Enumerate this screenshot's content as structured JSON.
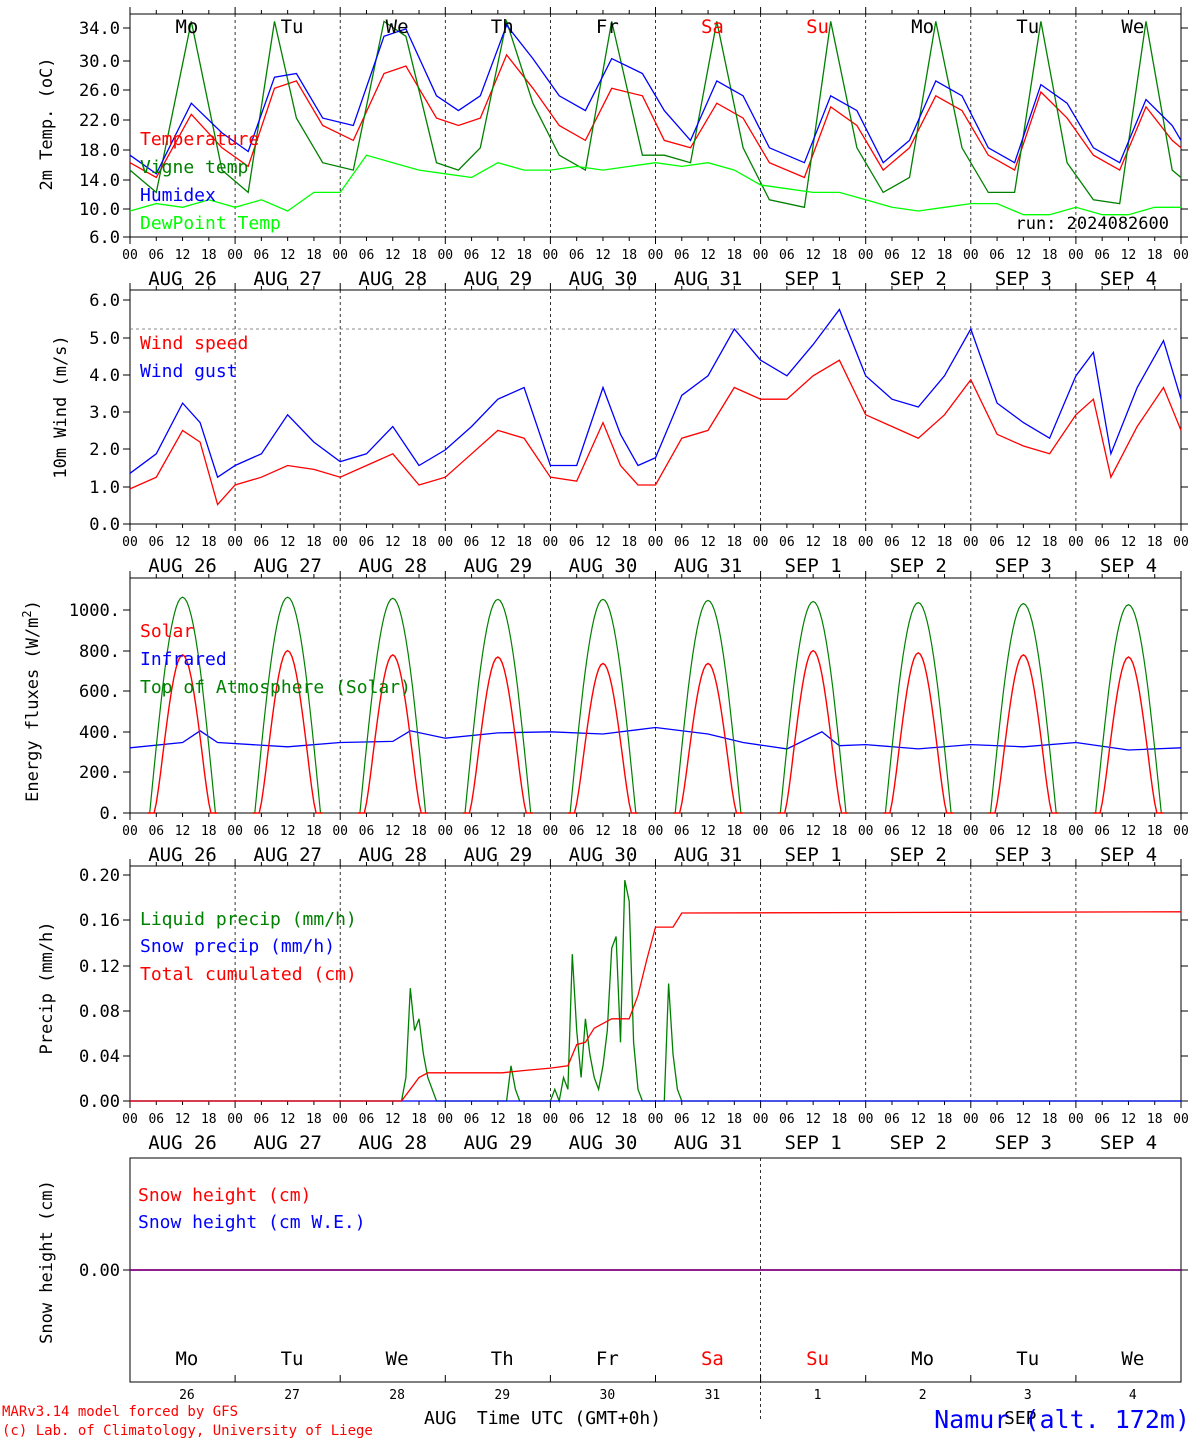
{
  "run_label": "run: 2024082600",
  "footer": {
    "credit_line1": "MARv3.14 model forced by GFS",
    "credit_line2": "(c) Lab. of Climatology, University of Liege",
    "xlabel": "Time UTC (GMT+0h)",
    "month_left": "AUG",
    "month_right": "SEP",
    "station": "Namur (alt. 172m)"
  },
  "time_axis": {
    "hour_ticks": [
      "00",
      "06",
      "12",
      "18"
    ],
    "date_labels": [
      "AUG 26",
      "AUG 27",
      "AUG 28",
      "AUG 29",
      "AUG 30",
      "AUG 31",
      "SEP  1",
      "SEP  2",
      "SEP  3",
      "SEP  4"
    ],
    "weekdays": [
      "Mo",
      "Tu",
      "We",
      "Th",
      "Fr",
      "Sa",
      "Su",
      "Mo",
      "Tu",
      "We"
    ],
    "weekday_colors": [
      "#000000",
      "#000000",
      "#000000",
      "#000000",
      "#000000",
      "#ff0000",
      "#ff0000",
      "#000000",
      "#000000",
      "#000000"
    ],
    "day_numbers": [
      "26",
      "27",
      "28",
      "29",
      "30",
      "31",
      "1",
      "2",
      "3",
      "4"
    ]
  },
  "colors": {
    "temperature": "#ff0000",
    "vigne": "#008000",
    "humidex": "#0000ff",
    "dewpoint": "#00ff00",
    "wind_speed": "#ff0000",
    "wind_gust": "#0000ff",
    "solar": "#ff0000",
    "infrared": "#0000ff",
    "toa": "#008000",
    "liquid": "#008000",
    "snow": "#0000ff",
    "cumul": "#ff0000",
    "snow_height": "#ff0000",
    "snow_we": "#0000ff",
    "station": "#0000ff"
  },
  "chart_data": [
    {
      "type": "line",
      "ylabel": "2m Temp. (oC)",
      "ylim": [
        6,
        36
      ],
      "yticks": [
        "6.0",
        "10.0",
        "14.0",
        "18.0",
        "22.0",
        "26.0",
        "30.0",
        "34.0"
      ],
      "x_unit": "hours since AUG 26 00 UTC",
      "legend": [
        "Temperature",
        "Vigne temp",
        "Humidex",
        "DewPoint Temp"
      ],
      "series": [
        {
          "name": "Temperature",
          "x": [
            0,
            6,
            14,
            21,
            27,
            33,
            38,
            44,
            51,
            58,
            63,
            70,
            75,
            80,
            86,
            92,
            98,
            104,
            110,
            117,
            122,
            128,
            134,
            140,
            146,
            154,
            160,
            166,
            172,
            178,
            184,
            190,
            196,
            202,
            208,
            214,
            220,
            226,
            232,
            238,
            240
          ],
          "values": [
            16,
            14,
            22.5,
            18,
            15.5,
            26,
            27,
            21,
            19,
            28,
            29,
            22,
            21,
            22,
            30.5,
            26,
            21,
            19,
            26,
            25,
            19,
            18,
            24,
            22,
            16,
            14,
            23.5,
            21,
            15,
            18,
            25,
            23,
            17,
            15,
            25.5,
            22,
            17,
            15,
            23.5,
            19,
            18
          ]
        },
        {
          "name": "Vigne temp",
          "x": [
            0,
            6,
            14,
            21,
            27,
            33,
            38,
            44,
            51,
            58,
            63,
            70,
            75,
            80,
            86,
            92,
            98,
            104,
            110,
            117,
            122,
            128,
            134,
            140,
            146,
            154,
            160,
            166,
            172,
            178,
            184,
            190,
            196,
            202,
            208,
            214,
            220,
            226,
            232,
            238,
            240
          ],
          "values": [
            15,
            12,
            35,
            15,
            12,
            35,
            22,
            16,
            15,
            35,
            33,
            16,
            15,
            18,
            35,
            24,
            17,
            15,
            35,
            17,
            17,
            16,
            35,
            18,
            11,
            10,
            35,
            18,
            12,
            14,
            35,
            18,
            12,
            12,
            35,
            16,
            11,
            10.5,
            35,
            15,
            14
          ]
        },
        {
          "name": "Humidex",
          "x": [
            0,
            6,
            14,
            21,
            27,
            33,
            38,
            44,
            51,
            58,
            63,
            70,
            75,
            80,
            86,
            92,
            98,
            104,
            110,
            117,
            122,
            128,
            134,
            140,
            146,
            154,
            160,
            166,
            172,
            178,
            184,
            190,
            196,
            202,
            208,
            214,
            220,
            226,
            232,
            238,
            240
          ],
          "values": [
            17,
            14.5,
            24,
            20,
            17.5,
            27.5,
            28,
            22,
            21,
            33,
            34,
            25,
            23,
            25,
            34.5,
            30,
            25,
            23,
            30,
            28,
            23,
            19,
            27,
            25,
            18,
            16,
            25,
            23,
            16,
            19,
            27,
            25,
            18,
            16,
            26.5,
            24,
            18,
            16,
            24.5,
            21,
            19
          ]
        },
        {
          "name": "DewPoint Temp",
          "x": [
            0,
            6,
            12,
            18,
            24,
            30,
            36,
            42,
            48,
            54,
            60,
            66,
            72,
            78,
            84,
            90,
            96,
            102,
            108,
            114,
            120,
            126,
            132,
            138,
            144,
            150,
            156,
            162,
            168,
            174,
            180,
            186,
            192,
            198,
            204,
            210,
            216,
            222,
            228,
            234,
            240
          ],
          "values": [
            9.5,
            10.5,
            10,
            11,
            10,
            11,
            9.5,
            12,
            12,
            17,
            16,
            15,
            14.5,
            14,
            16,
            15,
            15,
            15.5,
            15,
            15.5,
            16,
            15.5,
            16,
            15,
            13,
            12.5,
            12,
            12,
            11,
            10,
            9.5,
            10,
            10.5,
            10.5,
            9,
            9,
            10,
            9,
            9,
            10,
            10
          ]
        }
      ]
    },
    {
      "type": "line",
      "ylabel": "10m Wind (m/s)",
      "ylim": [
        0,
        6
      ],
      "yticks": [
        "0.0",
        "1.0",
        "2.0",
        "3.0",
        "4.0",
        "5.0",
        "6.0"
      ],
      "reference_line": 5,
      "legend": [
        "Wind speed",
        "Wind gust"
      ],
      "series": [
        {
          "name": "Wind speed",
          "x": [
            0,
            6,
            12,
            16,
            20,
            24,
            30,
            36,
            42,
            48,
            54,
            60,
            66,
            72,
            78,
            84,
            90,
            96,
            102,
            108,
            112,
            116,
            120,
            126,
            132,
            138,
            144,
            150,
            156,
            162,
            168,
            174,
            180,
            186,
            192,
            198,
            204,
            210,
            216,
            220,
            224,
            230,
            236,
            240
          ],
          "values": [
            0.9,
            1.2,
            2.4,
            2.1,
            0.5,
            1.0,
            1.2,
            1.5,
            1.4,
            1.2,
            1.5,
            1.8,
            1.0,
            1.2,
            1.8,
            2.4,
            2.2,
            1.2,
            1.1,
            2.6,
            1.5,
            1.0,
            1.0,
            2.2,
            2.4,
            3.5,
            3.2,
            3.2,
            3.8,
            4.2,
            2.8,
            2.5,
            2.2,
            2.8,
            3.7,
            2.3,
            2.0,
            1.8,
            2.8,
            3.2,
            1.2,
            2.5,
            3.5,
            2.4
          ]
        },
        {
          "name": "Wind gust",
          "x": [
            0,
            6,
            12,
            16,
            20,
            24,
            30,
            36,
            42,
            48,
            54,
            60,
            66,
            72,
            78,
            84,
            90,
            96,
            102,
            108,
            112,
            116,
            120,
            126,
            132,
            138,
            144,
            150,
            156,
            162,
            168,
            174,
            180,
            186,
            192,
            198,
            204,
            210,
            216,
            220,
            224,
            230,
            236,
            240
          ],
          "values": [
            1.3,
            1.8,
            3.1,
            2.6,
            1.2,
            1.5,
            1.8,
            2.8,
            2.1,
            1.6,
            1.8,
            2.5,
            1.5,
            1.9,
            2.5,
            3.2,
            3.5,
            1.5,
            1.5,
            3.5,
            2.3,
            1.5,
            1.7,
            3.3,
            3.8,
            5.0,
            4.2,
            3.8,
            4.6,
            5.5,
            3.8,
            3.2,
            3.0,
            3.8,
            5.0,
            3.1,
            2.6,
            2.2,
            3.8,
            4.4,
            1.8,
            3.5,
            4.7,
            3.2
          ]
        }
      ]
    },
    {
      "type": "line",
      "ylabel": "Energy fluxes (W/m2)",
      "ylim": [
        0,
        1100
      ],
      "yticks": [
        "0.",
        "200.",
        "400.",
        "600.",
        "800.",
        "1000."
      ],
      "legend": [
        "Solar",
        "Infrared",
        "Top of Atmosphere (Solar)"
      ],
      "solar_peaks": [
        740,
        760,
        740,
        730,
        700,
        700,
        760,
        750,
        740,
        730
      ],
      "toa_peaks": [
        1010,
        1010,
        1005,
        1000,
        1000,
        995,
        990,
        985,
        980,
        975
      ],
      "series": [
        {
          "name": "Infrared",
          "x": [
            0,
            12,
            16,
            20,
            36,
            48,
            60,
            64,
            72,
            84,
            96,
            108,
            120,
            132,
            140,
            150,
            158,
            162,
            168,
            180,
            192,
            204,
            216,
            228,
            240
          ],
          "values": [
            305,
            330,
            385,
            330,
            310,
            330,
            335,
            385,
            350,
            375,
            380,
            370,
            400,
            370,
            330,
            300,
            380,
            315,
            320,
            300,
            320,
            310,
            330,
            295,
            305
          ]
        }
      ]
    },
    {
      "type": "line",
      "ylabel": "Precip (mm/h)",
      "ylim": [
        0,
        0.2
      ],
      "yticks": [
        "0.00",
        "0.04",
        "0.08",
        "0.12",
        "0.16",
        "0.20"
      ],
      "legend": [
        "Liquid precip (mm/h)",
        "Snow precip (mm/h)",
        "Total cumulated (cm)"
      ],
      "series": [
        {
          "name": "Liquid precip (mm/h)",
          "x": [
            0,
            62,
            63,
            64,
            65,
            66,
            67,
            68,
            69,
            70,
            71,
            72,
            80,
            86,
            87,
            88,
            89,
            96,
            97,
            98,
            99,
            100,
            101,
            102,
            103,
            104,
            105,
            106,
            107,
            108,
            109,
            110,
            111,
            112,
            113,
            114,
            115,
            116,
            117,
            118,
            119,
            120,
            121,
            122,
            123,
            124,
            125,
            126,
            127,
            128,
            240
          ],
          "values": [
            0,
            0,
            0.02,
            0.096,
            0.06,
            0.07,
            0.04,
            0.02,
            0.01,
            0,
            0,
            0,
            0,
            0,
            0.03,
            0.01,
            0,
            0,
            0.01,
            0,
            0.02,
            0.01,
            0.125,
            0.06,
            0.02,
            0.07,
            0.04,
            0.02,
            0.01,
            0.03,
            0.06,
            0.13,
            0.14,
            0.05,
            0.188,
            0.17,
            0.05,
            0.01,
            0,
            0,
            0,
            0,
            0,
            0,
            0.1,
            0.04,
            0.01,
            0,
            0,
            0,
            0
          ]
        },
        {
          "name": "Snow precip (mm/h)",
          "x": [
            0,
            240
          ],
          "values": [
            0,
            0
          ]
        },
        {
          "name": "Total cumulated (cm)",
          "x": [
            0,
            62,
            64,
            66,
            68,
            85,
            90,
            96,
            100,
            102,
            104,
            106,
            110,
            114,
            116,
            118,
            120,
            122,
            124,
            126,
            240
          ],
          "values": [
            0,
            0,
            0.01,
            0.02,
            0.024,
            0.024,
            0.026,
            0.028,
            0.03,
            0.048,
            0.05,
            0.062,
            0.07,
            0.07,
            0.09,
            0.12,
            0.148,
            0.148,
            0.148,
            0.16,
            0.161
          ]
        }
      ]
    },
    {
      "type": "line",
      "ylabel": "Snow height (cm)",
      "ylim": [
        -1,
        1
      ],
      "yticks": [
        "0.00"
      ],
      "legend": [
        "Snow height (cm)",
        "Snow height (cm W.E.)"
      ],
      "series": [
        {
          "name": "Snow height (cm)",
          "x": [
            0,
            240
          ],
          "values": [
            0,
            0
          ]
        },
        {
          "name": "Snow height (cm W.E.)",
          "x": [
            0,
            240
          ],
          "values": [
            0,
            0
          ]
        }
      ]
    }
  ]
}
